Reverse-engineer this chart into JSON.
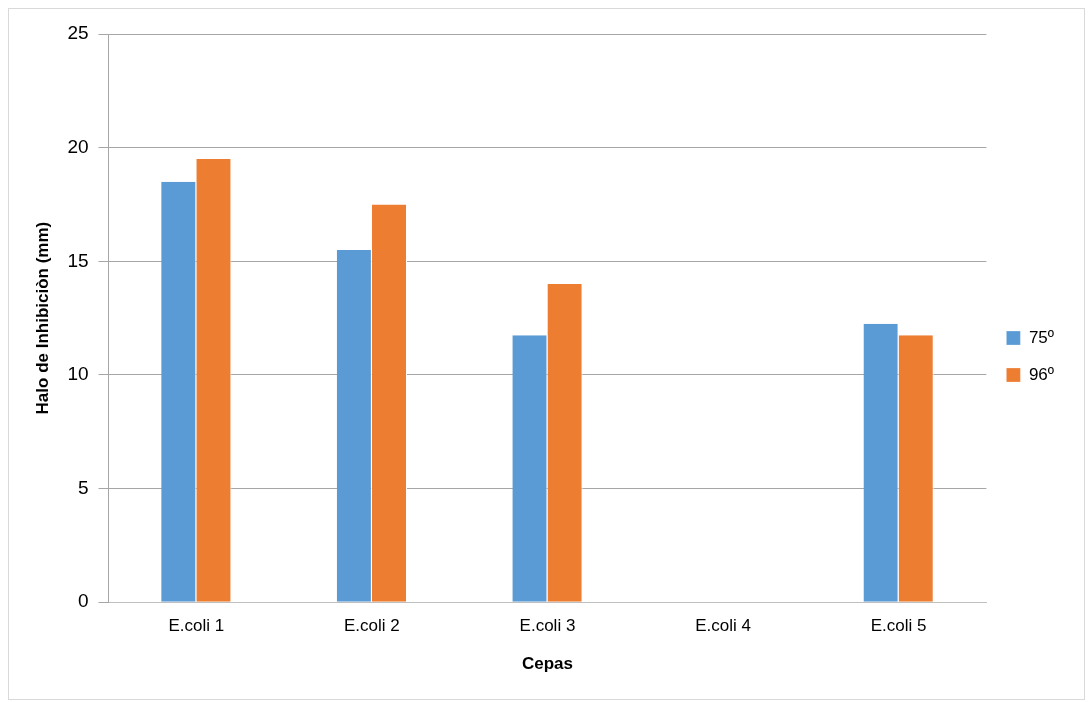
{
  "chart_data": {
    "type": "bar",
    "xlabel": "Cepas",
    "ylabel": "Halo de Inhibiciòn (mm)",
    "categories": [
      "E.coli 1",
      "E.coli 2",
      "E.coli 3",
      "E.coli 4",
      "E.coli 5"
    ],
    "series": [
      {
        "name": "75º",
        "color": "#5b9bd5",
        "values": [
          18.5,
          15.5,
          11.75,
          0,
          12.25
        ]
      },
      {
        "name": "96º",
        "color": "#ed7d31",
        "values": [
          19.5,
          17.5,
          14,
          0,
          11.75
        ]
      }
    ],
    "ylim": [
      0,
      25
    ],
    "yticks": [
      0,
      5,
      10,
      15,
      20,
      25
    ],
    "grid": "y",
    "legend": "right"
  }
}
